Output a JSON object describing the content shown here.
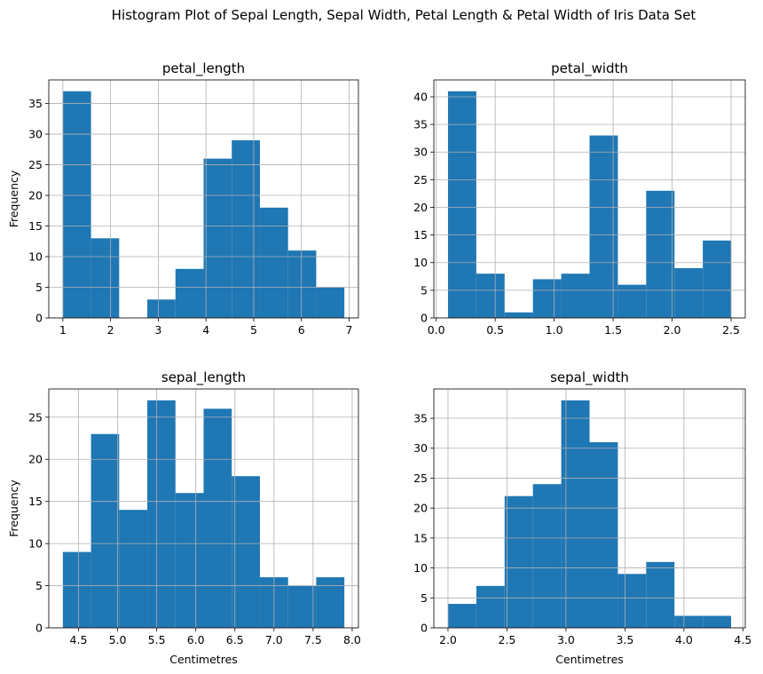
{
  "figure": {
    "title": "Histogram Plot of Sepal Length, Sepal Width, Petal Length & Petal Width of Iris Data Set",
    "background": "#ffffff",
    "bar_color": "#1f77b4",
    "grid_color": "#b0b0b0"
  },
  "chart_data": [
    {
      "type": "bar",
      "title": "petal_length",
      "ylabel": "Frequency",
      "xlabel": "",
      "grid": true,
      "xlim": [
        0.705,
        7.195
      ],
      "ylim": [
        0,
        38.85
      ],
      "xticks": [
        1,
        2,
        3,
        4,
        5,
        6,
        7
      ],
      "xtick_labels": [
        "1",
        "2",
        "3",
        "4",
        "5",
        "6",
        "7"
      ],
      "yticks": [
        0,
        5,
        10,
        15,
        20,
        25,
        30,
        35
      ],
      "ytick_labels": [
        "0",
        "5",
        "10",
        "15",
        "20",
        "25",
        "30",
        "35"
      ],
      "bin_edges": [
        1.0,
        1.59,
        2.18,
        2.77,
        3.36,
        3.95,
        4.54,
        5.13,
        5.72,
        6.31,
        6.9
      ],
      "values": [
        37,
        13,
        0,
        3,
        8,
        26,
        29,
        18,
        11,
        5
      ]
    },
    {
      "type": "bar",
      "title": "petal_width",
      "ylabel": "",
      "xlabel": "",
      "grid": true,
      "xlim": [
        -0.02,
        2.62
      ],
      "ylim": [
        0,
        43.05
      ],
      "xticks": [
        0.0,
        0.5,
        1.0,
        1.5,
        2.0,
        2.5
      ],
      "xtick_labels": [
        "0.0",
        "0.5",
        "1.0",
        "1.5",
        "2.0",
        "2.5"
      ],
      "yticks": [
        0,
        5,
        10,
        15,
        20,
        25,
        30,
        35,
        40
      ],
      "ytick_labels": [
        "0",
        "5",
        "10",
        "15",
        "20",
        "25",
        "30",
        "35",
        "40"
      ],
      "bin_edges": [
        0.1,
        0.34,
        0.58,
        0.82,
        1.06,
        1.3,
        1.54,
        1.78,
        2.02,
        2.26,
        2.5
      ],
      "values": [
        41,
        8,
        1,
        7,
        8,
        33,
        6,
        23,
        9,
        14
      ]
    },
    {
      "type": "bar",
      "title": "sepal_length",
      "ylabel": "Frequency",
      "xlabel": "Centimetres",
      "grid": true,
      "xlim": [
        4.12,
        8.08
      ],
      "ylim": [
        0,
        28.35
      ],
      "xticks": [
        4.5,
        5.0,
        5.5,
        6.0,
        6.5,
        7.0,
        7.5,
        8.0
      ],
      "xtick_labels": [
        "4.5",
        "5.0",
        "5.5",
        "6.0",
        "6.5",
        "7.0",
        "7.5",
        "8.0"
      ],
      "yticks": [
        0,
        5,
        10,
        15,
        20,
        25
      ],
      "ytick_labels": [
        "0",
        "5",
        "10",
        "15",
        "20",
        "25"
      ],
      "bin_edges": [
        4.3,
        4.66,
        5.02,
        5.38,
        5.74,
        6.1,
        6.46,
        6.82,
        7.18,
        7.54,
        7.9
      ],
      "values": [
        9,
        23,
        14,
        27,
        16,
        26,
        18,
        6,
        5,
        6
      ]
    },
    {
      "type": "bar",
      "title": "sepal_width",
      "ylabel": "",
      "xlabel": "Centimetres",
      "grid": true,
      "xlim": [
        1.88,
        4.52
      ],
      "ylim": [
        0,
        39.9
      ],
      "xticks": [
        2.0,
        2.5,
        3.0,
        3.5,
        4.0,
        4.5
      ],
      "xtick_labels": [
        "2.0",
        "2.5",
        "3.0",
        "3.5",
        "4.0",
        "4.5"
      ],
      "yticks": [
        0,
        5,
        10,
        15,
        20,
        25,
        30,
        35
      ],
      "ytick_labels": [
        "0",
        "5",
        "10",
        "15",
        "20",
        "25",
        "30",
        "35"
      ],
      "bin_edges": [
        2.0,
        2.24,
        2.48,
        2.72,
        2.96,
        3.2,
        3.44,
        3.68,
        3.92,
        4.16,
        4.4
      ],
      "values": [
        4,
        7,
        22,
        24,
        38,
        31,
        9,
        11,
        2,
        2
      ]
    }
  ]
}
